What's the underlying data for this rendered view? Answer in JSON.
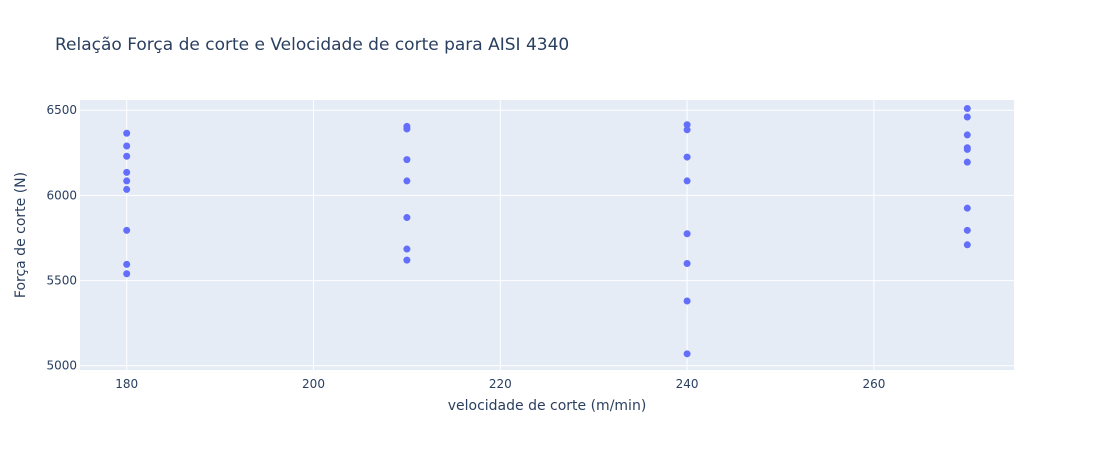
{
  "chart_data": {
    "type": "scatter",
    "title": "Relação Força de corte e Velocidade de corte para AISI 4340",
    "xlabel": "velocidade de corte (m/min)",
    "ylabel": "Força de corte (N)",
    "xlim": [
      175,
      275
    ],
    "ylim": [
      4975,
      6560
    ],
    "x_ticks": [
      180,
      200,
      220,
      240,
      260
    ],
    "y_ticks": [
      5000,
      5500,
      6000,
      6500
    ],
    "grid": true,
    "colors": {
      "marker": "#636efa",
      "plot_bg": "#e5ecf6",
      "grid": "#ffffff",
      "text": "#2a3f5f"
    },
    "series": [
      {
        "points": [
          [
            180,
            6365
          ],
          [
            180,
            6290
          ],
          [
            180,
            6230
          ],
          [
            180,
            6135
          ],
          [
            180,
            6085
          ],
          [
            180,
            6035
          ],
          [
            180,
            5795
          ],
          [
            180,
            5595
          ],
          [
            180,
            5540
          ],
          [
            210,
            6405
          ],
          [
            210,
            6390
          ],
          [
            210,
            6210
          ],
          [
            210,
            6085
          ],
          [
            210,
            5870
          ],
          [
            210,
            5685
          ],
          [
            210,
            5620
          ],
          [
            240,
            6415
          ],
          [
            240,
            6385
          ],
          [
            240,
            6225
          ],
          [
            240,
            6085
          ],
          [
            240,
            5775
          ],
          [
            240,
            5600
          ],
          [
            240,
            5380
          ],
          [
            240,
            5070
          ],
          [
            270,
            6510
          ],
          [
            270,
            6460
          ],
          [
            270,
            6355
          ],
          [
            270,
            6280
          ],
          [
            270,
            6270
          ],
          [
            270,
            6195
          ],
          [
            270,
            5925
          ],
          [
            270,
            5795
          ],
          [
            270,
            5710
          ]
        ]
      }
    ]
  }
}
